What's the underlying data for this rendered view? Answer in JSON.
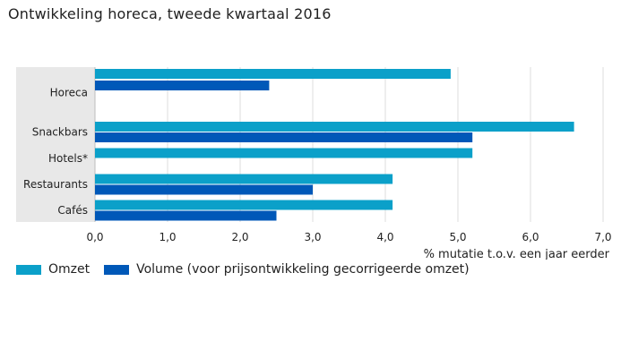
{
  "title": "Ontwikkeling horeca, tweede kwartaal 2016",
  "colors": {
    "omzet": "#0ba0c9",
    "volume": "#0058b8",
    "category_band": "#e8e8e8",
    "grid": "#dcdcdc"
  },
  "chart_data": {
    "type": "bar",
    "orientation": "horizontal",
    "title": "Ontwikkeling horeca, tweede kwartaal 2016",
    "categories": [
      "Horeca",
      "Snackbars",
      "Hotels*",
      "Restaurants",
      "Cafés"
    ],
    "series": [
      {
        "name": "Omzet",
        "values": [
          4.9,
          6.6,
          5.2,
          4.1,
          4.1
        ]
      },
      {
        "name": "Volume (voor prijsontwikkeling gecorrigeerde omzet)",
        "values": [
          2.4,
          5.2,
          null,
          3.0,
          2.5
        ]
      }
    ],
    "xlabel": "% mutatie t.o.v. een jaar eerder",
    "ylabel": "",
    "xlim": [
      0,
      7
    ],
    "xticks": [
      "0,0",
      "1,0",
      "2,0",
      "3,0",
      "4,0",
      "5,0",
      "6,0",
      "7,0"
    ],
    "grid": true,
    "legend_position": "bottom-left"
  }
}
